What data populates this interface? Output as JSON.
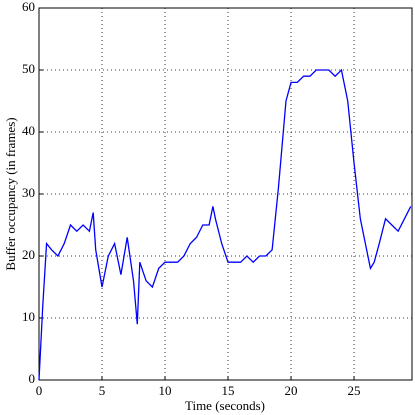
{
  "chart_data": {
    "type": "line",
    "xlabel": "Time (seconds)",
    "ylabel": "Buffer occupancy (in frames)",
    "x": [
      0,
      0.3,
      0.6,
      1,
      1.5,
      2,
      2.5,
      3,
      3.5,
      4,
      4.3,
      4.5,
      5,
      5.5,
      6,
      6.5,
      7,
      7.5,
      7.8,
      8,
      8.5,
      9,
      9.5,
      10,
      10.5,
      11,
      11.5,
      12,
      12.5,
      13,
      13.5,
      13.8,
      14,
      14.5,
      15,
      15.5,
      16,
      16.5,
      17,
      17.5,
      18,
      18.5,
      19,
      19.3,
      19.6,
      20,
      20.5,
      21,
      21.5,
      22,
      22.5,
      23,
      23.5,
      24,
      24.5,
      25,
      25.5,
      26,
      26.3,
      26.6,
      27,
      27.5,
      28,
      28.5,
      29,
      29.5
    ],
    "series": [
      {
        "name": "Buffer occupancy",
        "color": "#0000ff",
        "values": [
          0,
          12,
          22,
          21,
          20,
          22,
          25,
          24,
          25,
          24,
          27,
          21,
          15,
          20,
          22,
          17,
          23,
          16,
          9,
          19,
          16,
          15,
          18,
          19,
          19,
          19,
          20,
          22,
          23,
          25,
          25,
          28,
          26,
          22,
          19,
          19,
          19,
          20,
          19,
          20,
          20,
          21,
          31,
          38,
          45,
          48,
          48,
          49,
          49,
          50,
          50,
          50,
          49,
          50,
          45,
          35,
          26,
          21,
          18,
          19,
          22,
          26,
          25,
          24,
          26,
          28
        ]
      }
    ],
    "xlim": [
      0,
      29.6
    ],
    "ylim": [
      0,
      60
    ],
    "xticks": [
      0,
      5,
      10,
      15,
      20,
      25
    ],
    "yticks": [
      0,
      10,
      20,
      30,
      40,
      50,
      60
    ],
    "grid": true
  }
}
